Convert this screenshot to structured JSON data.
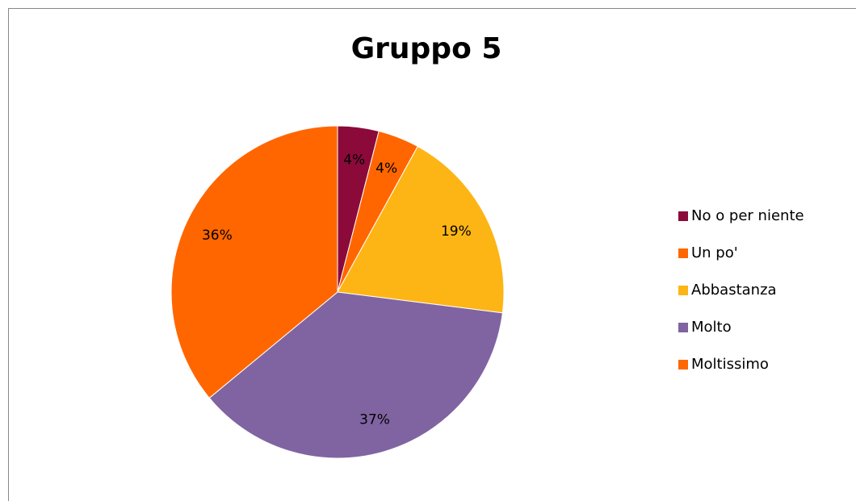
{
  "chart_data": {
    "type": "pie",
    "title": "Gruppo 5",
    "categories": [
      "No o per niente",
      "Un po'",
      "Abbastanza",
      "Molto",
      "Moltissimo"
    ],
    "values": [
      4,
      4,
      19,
      37,
      36
    ],
    "value_labels": [
      "4%",
      "4%",
      "19%",
      "37%",
      "36%"
    ],
    "colors": [
      "#8b0a3a",
      "#ff6600",
      "#fdb515",
      "#8064a2",
      "#ff6600"
    ],
    "legend": "right"
  }
}
